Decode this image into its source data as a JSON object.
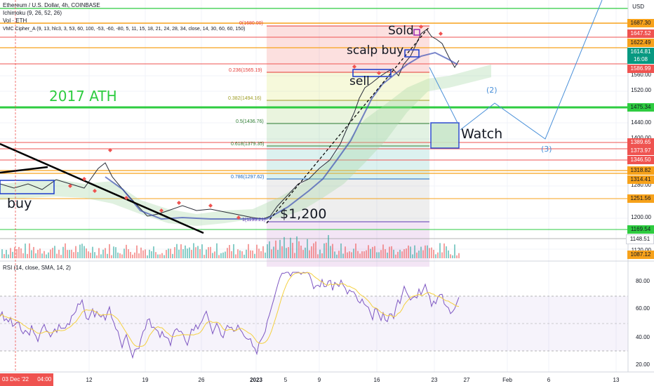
{
  "header": {
    "title": "Ethereum / U.S. Dollar, 4h, COINBASE",
    "indicators": [
      "Ichimoku (9, 26, 52, 26)",
      "Vol · ETH",
      "VMC Cipher_A (9, 13, hlc3, 3, 53, 60, 100, -53, -60, -80, 5, 11, 15, 18, 21, 24, 28, 34, close, 14, 30, 60, 60, 150)"
    ],
    "currency": "USD"
  },
  "rsi_legend": "RSI (14, close, SMA, 14, 2)",
  "annotations": {
    "ath": "2017 ATH",
    "buy": "buy",
    "sell": "sell",
    "scalp_buy": "scalp buy",
    "sold": "Sold",
    "watch": "Watch",
    "price_1200": "$1,200",
    "wave2": "(2)",
    "wave3": "(3)"
  },
  "fib_levels": [
    {
      "label": "0(1680.00)",
      "color": "#e53935"
    },
    {
      "label": "0.236(1565.19)",
      "color": "#e53935"
    },
    {
      "label": "0.382(1494.16)",
      "color": "#9e9d24"
    },
    {
      "label": "0.5(1436.76)",
      "color": "#2e7d32"
    },
    {
      "label": "0.618(1379.35)",
      "color": "#2e7d32"
    },
    {
      "label": "0.786(1297.62)",
      "color": "#1565c0"
    },
    {
      "label": "1(1193.21)",
      "color": "#5e35b1"
    }
  ],
  "price_axis": {
    "ticks": [
      "1560.00",
      "1520.00",
      "1440.00",
      "1400.00",
      "1280.00",
      "1200.00",
      "1120.00"
    ],
    "labels": [
      {
        "text": "1687.30",
        "bg": "#f7a21b",
        "fg": "#131722"
      },
      {
        "text": "1647.52",
        "bg": "#ef5350",
        "fg": "#ffffff"
      },
      {
        "text": "1622.49",
        "bg": "#f7a21b",
        "fg": "#131722"
      },
      {
        "text": "1614.81",
        "bg": "#089981",
        "fg": "#ffffff"
      },
      {
        "text": "16:08",
        "bg": "#089981",
        "fg": "#ffffff"
      },
      {
        "text": "1586.99",
        "bg": "#ef5350",
        "fg": "#ffffff"
      },
      {
        "text": "1475.34",
        "bg": "#2ecc40",
        "fg": "#131722"
      },
      {
        "text": "1389.65",
        "bg": "#ef5350",
        "fg": "#ffffff"
      },
      {
        "text": "1373.97",
        "bg": "#ef5350",
        "fg": "#ffffff"
      },
      {
        "text": "1346.50",
        "bg": "#ef5350",
        "fg": "#ffffff"
      },
      {
        "text": "1318.82",
        "bg": "#f7a21b",
        "fg": "#131722"
      },
      {
        "text": "1314.41",
        "bg": "#f7a21b",
        "fg": "#131722"
      },
      {
        "text": "1251.56",
        "bg": "#f7a21b",
        "fg": "#131722"
      },
      {
        "text": "1169.54",
        "bg": "#2ecc40",
        "fg": "#131722"
      },
      {
        "text": "1148.51",
        "bg": "#ffffff",
        "fg": "#131722"
      },
      {
        "text": "1087.12",
        "bg": "#f7a21b",
        "fg": "#131722"
      }
    ]
  },
  "rsi_axis": [
    "80.00",
    "60.00",
    "40.00",
    "20.00"
  ],
  "time_axis": {
    "current": "03 Dec '22",
    "current_time": "04:00",
    "labels": [
      "12",
      "19",
      "26",
      "2023",
      "5",
      "9",
      "16",
      "23",
      "27",
      "Feb",
      "6",
      "13"
    ]
  },
  "colors": {
    "up": "#26a69a",
    "down": "#ef5350",
    "ath_line": "#2ecc40",
    "support": "#f7a21b",
    "resistance": "#ef5350"
  }
}
